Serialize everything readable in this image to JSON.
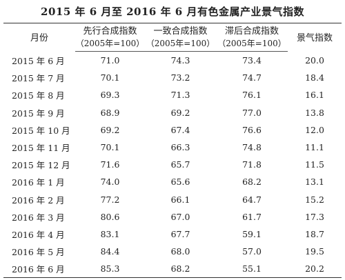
{
  "title": "2015 年 6 月至 2016 年 6 月有色金属产业景气指数",
  "table": {
    "headers": {
      "month": "月份",
      "leading": "先行合成指数",
      "coincident": "一致合成指数",
      "lagging": "滞后合成指数",
      "prosperity": "景气指数",
      "unit": "（2005年=100）"
    },
    "rows": [
      {
        "month": "2015 年 6 月",
        "leading": "71.0",
        "coincident": "74.3",
        "lagging": "73.4",
        "prosperity": "20.0"
      },
      {
        "month": "2015 年 7 月",
        "leading": "70.1",
        "coincident": "73.2",
        "lagging": "74.7",
        "prosperity": "18.4"
      },
      {
        "month": "2015 年 8 月",
        "leading": "69.3",
        "coincident": "71.3",
        "lagging": "76.1",
        "prosperity": "16.1"
      },
      {
        "month": "2015 年 9 月",
        "leading": "68.9",
        "coincident": "69.2",
        "lagging": "77.0",
        "prosperity": "13.8"
      },
      {
        "month": "2015 年 10 月",
        "leading": "69.2",
        "coincident": "67.4",
        "lagging": "76.6",
        "prosperity": "12.0"
      },
      {
        "month": "2015 年 11 月",
        "leading": "70.1",
        "coincident": "66.3",
        "lagging": "74.8",
        "prosperity": "11.1"
      },
      {
        "month": "2015 年 12 月",
        "leading": "71.6",
        "coincident": "65.7",
        "lagging": "71.8",
        "prosperity": "11.5"
      },
      {
        "month": "2016 年 1 月",
        "leading": "74.0",
        "coincident": "65.6",
        "lagging": "68.2",
        "prosperity": "13.1"
      },
      {
        "month": "2016 年 2 月",
        "leading": "77.2",
        "coincident": "66.1",
        "lagging": "64.7",
        "prosperity": "15.2"
      },
      {
        "month": "2016 年 3 月",
        "leading": "80.6",
        "coincident": "67.0",
        "lagging": "61.7",
        "prosperity": "17.3"
      },
      {
        "month": "2016 年 4 月",
        "leading": "83.1",
        "coincident": "67.7",
        "lagging": "59.1",
        "prosperity": "18.7"
      },
      {
        "month": "2016 年 5 月",
        "leading": "84.4",
        "coincident": "68.0",
        "lagging": "57.0",
        "prosperity": "19.5"
      },
      {
        "month": "2016 年 6 月",
        "leading": "85.3",
        "coincident": "68.2",
        "lagging": "55.1",
        "prosperity": "20.2"
      }
    ]
  }
}
